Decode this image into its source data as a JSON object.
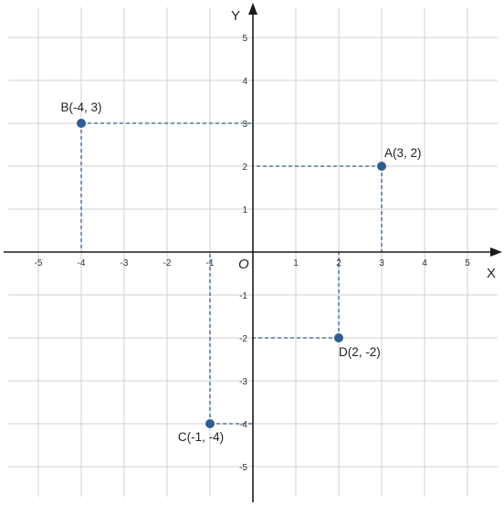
{
  "chart_data": {
    "type": "scatter",
    "title": "",
    "xlabel": "X",
    "ylabel": "Y",
    "origin_label": "O",
    "xlim": [
      -5.5,
      5.5
    ],
    "ylim": [
      -5.5,
      5.5
    ],
    "grid": true,
    "projection_lines": "dashed",
    "x_ticks": [
      "-5",
      "-4",
      "-3",
      "-2",
      "-1",
      "1",
      "2",
      "3",
      "4",
      "5"
    ],
    "y_ticks": [
      "5",
      "4",
      "3",
      "2",
      "1",
      "-1",
      "-2",
      "-3",
      "-4",
      "-5"
    ],
    "points": [
      {
        "label": "A(3, 2)",
        "x": 3,
        "y": 2
      },
      {
        "label": "B(-4, 3)",
        "x": -4,
        "y": 3
      },
      {
        "label": "C(-1, -4)",
        "x": -1,
        "y": -4
      },
      {
        "label": "D(2, -2)",
        "x": 2,
        "y": -2
      }
    ],
    "colors": {
      "grid": "#d0d0d0",
      "axis": "#1a1a1a",
      "point": "#2f5d8e",
      "dash": "#2f5d8e"
    }
  }
}
